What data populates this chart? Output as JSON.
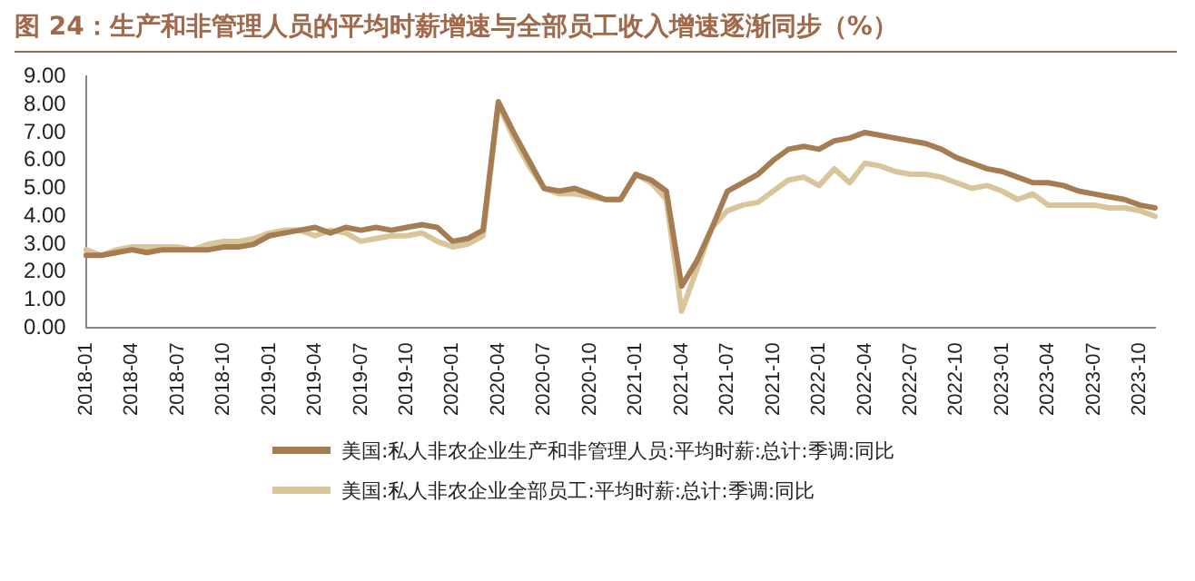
{
  "chart_data": {
    "type": "line",
    "title": "图 24：生产和非管理人员的平均时薪增速与全部员工收入增速逐渐同步（%）",
    "categories": [
      "2018-01",
      null,
      null,
      "2018-04",
      null,
      null,
      "2018-07",
      null,
      null,
      "2018-10",
      null,
      null,
      "2019-01",
      null,
      null,
      "2019-04",
      null,
      null,
      "2019-07",
      null,
      null,
      "2019-10",
      null,
      null,
      "2020-01",
      null,
      null,
      "2020-04",
      null,
      null,
      "2020-07",
      null,
      null,
      "2020-10",
      null,
      null,
      "2021-01",
      null,
      null,
      "2021-04",
      null,
      null,
      "2021-07",
      null,
      null,
      "2021-10",
      null,
      null,
      "2022-01",
      null,
      null,
      "2022-04",
      null,
      null,
      "2022-07",
      null,
      null,
      "2022-10",
      null,
      null,
      "2023-01",
      null,
      null,
      "2023-04",
      null,
      null,
      "2023-07",
      null,
      null,
      "2023-10",
      null
    ],
    "series": [
      {
        "name": "美国:私人非农企业生产和非管理人员:平均时薪:总计:季调:同比",
        "color": "#a67c52",
        "values": [
          2.6,
          2.6,
          2.7,
          2.8,
          2.7,
          2.8,
          2.8,
          2.8,
          2.8,
          2.9,
          2.9,
          3.0,
          3.3,
          3.4,
          3.5,
          3.6,
          3.4,
          3.6,
          3.5,
          3.6,
          3.5,
          3.6,
          3.7,
          3.6,
          3.1,
          3.2,
          3.5,
          8.1,
          7.0,
          6.0,
          5.0,
          4.9,
          5.0,
          4.8,
          4.6,
          4.6,
          5.5,
          5.3,
          4.9,
          1.5,
          2.4,
          3.6,
          4.9,
          5.2,
          5.5,
          6.0,
          6.4,
          6.5,
          6.4,
          6.7,
          6.8,
          7.0,
          6.9,
          6.8,
          6.7,
          6.6,
          6.4,
          6.1,
          5.9,
          5.7,
          5.6,
          5.4,
          5.2,
          5.2,
          5.1,
          4.9,
          4.8,
          4.7,
          4.6,
          4.4,
          4.3
        ]
      },
      {
        "name": "美国:私人非农企业全部员工:平均时薪:总计:季调:同比",
        "color": "#d8c59a",
        "values": [
          2.8,
          2.6,
          2.8,
          2.9,
          2.9,
          2.9,
          2.9,
          2.8,
          3.0,
          3.1,
          3.1,
          3.2,
          3.4,
          3.5,
          3.5,
          3.3,
          3.5,
          3.4,
          3.1,
          3.2,
          3.3,
          3.3,
          3.4,
          3.1,
          2.9,
          3.0,
          3.3,
          8.0,
          6.8,
          5.8,
          5.0,
          4.8,
          4.8,
          4.7,
          4.6,
          4.6,
          5.5,
          5.2,
          4.6,
          0.6,
          2.1,
          3.6,
          4.2,
          4.4,
          4.5,
          4.9,
          5.3,
          5.4,
          5.1,
          5.7,
          5.2,
          5.9,
          5.8,
          5.6,
          5.5,
          5.5,
          5.4,
          5.2,
          5.0,
          5.1,
          4.9,
          4.6,
          4.8,
          4.4,
          4.4,
          4.4,
          4.4,
          4.3,
          4.3,
          4.2,
          4.0
        ]
      }
    ],
    "ylim": [
      0,
      9
    ],
    "yticks": [
      {
        "value": 0,
        "label": "0.00"
      },
      {
        "value": 1,
        "label": "1.00"
      },
      {
        "value": 2,
        "label": "2.00"
      },
      {
        "value": 3,
        "label": "3.00"
      },
      {
        "value": 4,
        "label": "4.00"
      },
      {
        "value": 5,
        "label": "5.00"
      },
      {
        "value": 6,
        "label": "6.00"
      },
      {
        "value": 7,
        "label": "7.00"
      },
      {
        "value": 8,
        "label": "8.00"
      },
      {
        "value": 9,
        "label": "9.00"
      }
    ],
    "grid": false,
    "legend": "bottom",
    "marker": "none",
    "line_style": "solid"
  }
}
